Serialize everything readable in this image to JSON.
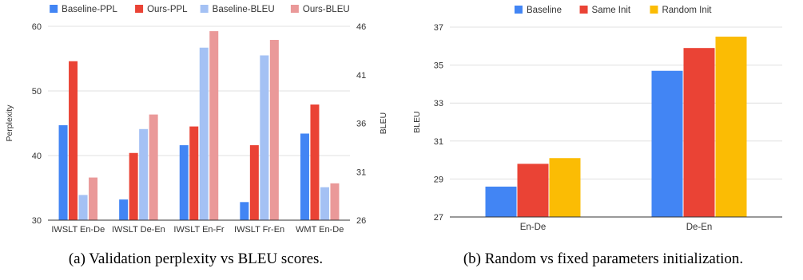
{
  "figures": [
    {
      "caption": "(a) Validation perplexity vs BLEU scores.",
      "chart_data": {
        "type": "bar",
        "categories": [
          "IWSLT En-De",
          "IWSLT De-En",
          "IWSLT En-Fr",
          "IWSLT Fr-En",
          "WMT En-De"
        ],
        "series": [
          {
            "name": "Baseline-PPL",
            "axis": "left",
            "color": "#4285f4",
            "values": [
              44.7,
              33.2,
              41.6,
              32.8,
              43.4
            ]
          },
          {
            "name": "Ours-PPL",
            "axis": "left",
            "color": "#ea4335",
            "values": [
              54.6,
              40.4,
              44.5,
              41.6,
              47.9
            ]
          },
          {
            "name": "Baseline-BLEU",
            "axis": "right",
            "color": "#a4c1f4",
            "values": [
              28.6,
              35.4,
              43.8,
              43.0,
              29.4
            ]
          },
          {
            "name": "Ours-BLEU",
            "axis": "right",
            "color": "#ea9999",
            "values": [
              30.4,
              36.9,
              45.5,
              44.6,
              29.8
            ]
          }
        ],
        "ylabel": "Perplexity",
        "y2label": "BLEU",
        "ylim": [
          30,
          60
        ],
        "y2lim": [
          26,
          46
        ],
        "yticks": [
          30,
          40,
          50,
          60
        ],
        "y2ticks": [
          26,
          31,
          36,
          41,
          46
        ],
        "grid": true,
        "legend": "top"
      }
    },
    {
      "caption": "(b) Random vs fixed parameters initialization.",
      "chart_data": {
        "type": "bar",
        "categories": [
          "En-De",
          "De-En"
        ],
        "series": [
          {
            "name": "Baseline",
            "color": "#4285f4",
            "values": [
              28.6,
              34.7
            ]
          },
          {
            "name": "Same Init",
            "color": "#ea4335",
            "values": [
              29.8,
              35.9
            ]
          },
          {
            "name": "Random Init",
            "color": "#fbbc04",
            "values": [
              30.1,
              36.5
            ]
          }
        ],
        "ylabel": "BLEU",
        "ylim": [
          27,
          37
        ],
        "yticks": [
          27,
          29,
          31,
          33,
          35,
          37
        ],
        "grid": true,
        "legend": "top"
      }
    }
  ]
}
